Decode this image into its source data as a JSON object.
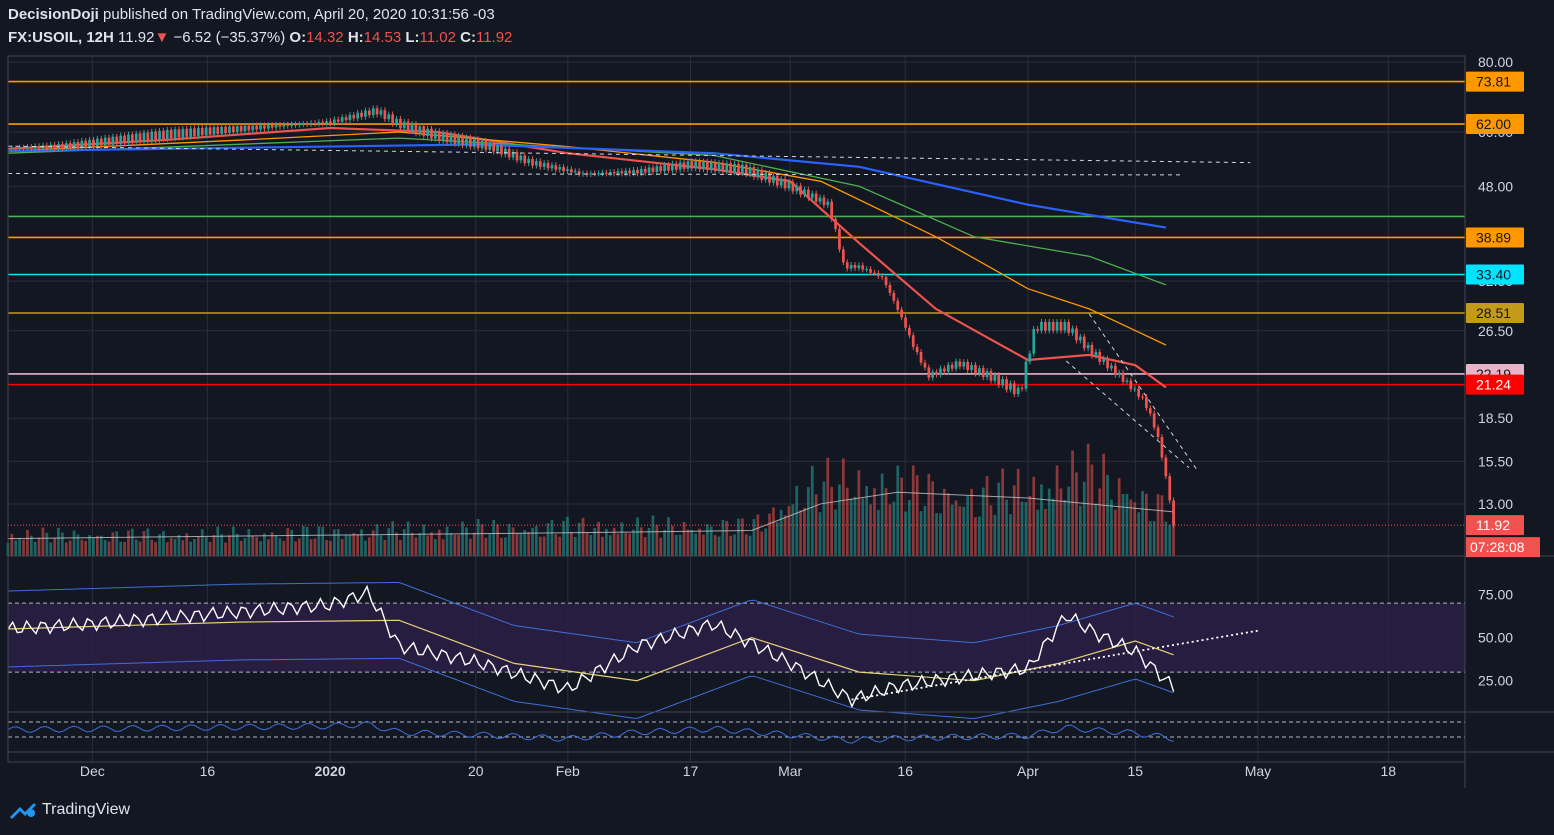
{
  "header": {
    "author": "DecisionDoji",
    "published": "published on TradingView.com, April 20, 2020 10:31:56 -03",
    "symbol": "FX:USOIL, 12H",
    "last": "11.92",
    "down_arrow": "▼",
    "change": "−6.52 (−35.37%)",
    "o_label": "O:",
    "o_value": "14.32",
    "h_label": "H:",
    "h_value": "14.53",
    "l_label": "L:",
    "l_value": "11.02",
    "c_label": "C:",
    "c_value": "11.92"
  },
  "footer": {
    "brand": "TradingView",
    "logo_icon": "tradingview-logo-icon"
  },
  "colors": {
    "background": "#131722",
    "grid": "#2a2e39",
    "up": "#26a69a",
    "down": "#ef5350",
    "orange": "#ff9800",
    "green_line": "#4caf50",
    "cyan": "#00e5ff",
    "gold": "#c49a1a",
    "pink": "#e8b4c8",
    "red_line": "#ff0000",
    "ma_blue": "#2962ff",
    "rsi_line": "#ffffff",
    "rsi_ma": "#e6d27a",
    "bb": "#3f6fd8",
    "band_fill": "#2a1f45"
  },
  "chart_data": [
    {
      "type": "candlestick",
      "title": "FX:USOIL, 12H",
      "y_scale": "log",
      "ylim": [
        10.5,
        82
      ],
      "y_ticks": [
        "80.00",
        "60.00",
        "48.00",
        "32.50",
        "26.50",
        "18.50",
        "15.50",
        "13.00"
      ],
      "x_ticks": [
        "Dec",
        "16",
        "2020",
        "20",
        "Feb",
        "17",
        "Mar",
        "16",
        "Apr",
        "15",
        "May",
        "18"
      ],
      "x_range": [
        "2019-11-20",
        "2020-05-28"
      ],
      "price_labels": [
        {
          "value": "73.81",
          "color": "#ff9800",
          "text_color": "#131722"
        },
        {
          "value": "62.00",
          "color": "#ff9800",
          "text_color": "#131722"
        },
        {
          "value": "38.89",
          "color": "#ff9800",
          "text_color": "#131722"
        },
        {
          "value": "33.40",
          "color": "#00e5ff",
          "text_color": "#131722"
        },
        {
          "value": "28.51",
          "color": "#c49a1a",
          "text_color": "#131722"
        },
        {
          "value": "22.19",
          "color": "#e8b4c8",
          "text_color": "#131722"
        },
        {
          "value": "21.24",
          "color": "#ff0000",
          "text_color": "#ffffff"
        },
        {
          "value": "11.92",
          "color": "#ef5350",
          "text_color": "#ffffff"
        }
      ],
      "countdown": "07:28:08",
      "horizontal_levels": [
        {
          "value": 73.81,
          "color": "#ff9800"
        },
        {
          "value": 62.0,
          "color": "#ff9800"
        },
        {
          "value": 42.4,
          "color": "#4caf50"
        },
        {
          "value": 38.89,
          "color": "#ff9800"
        },
        {
          "value": 33.4,
          "color": "#00e5ff"
        },
        {
          "value": 28.51,
          "color": "#c49a1a"
        },
        {
          "value": 22.19,
          "color": "#e8b4c8"
        },
        {
          "value": 21.24,
          "color": "#ff0000"
        }
      ],
      "dashed_trendlines": [
        {
          "from": [
            "2019-11-20",
            56.6
          ],
          "to": [
            "2020-04-30",
            52.9
          ]
        },
        {
          "from": [
            "2019-11-20",
            50.6
          ],
          "to": [
            "2020-04-21",
            50.3
          ]
        },
        {
          "from": [
            "2020-04-09",
            28.4
          ],
          "to": [
            "2020-04-23",
            15.0
          ]
        },
        {
          "from": [
            "2020-04-06",
            23.4
          ],
          "to": [
            "2020-04-22",
            15.1
          ]
        }
      ],
      "price_series": {
        "dates": [
          "2019-11-20",
          "2019-11-27",
          "2019-12-04",
          "2019-12-11",
          "2019-12-18",
          "2019-12-25",
          "2020-01-01",
          "2020-01-07",
          "2020-01-10",
          "2020-01-15",
          "2020-01-22",
          "2020-01-27",
          "2020-02-03",
          "2020-02-10",
          "2020-02-17",
          "2020-02-24",
          "2020-03-01",
          "2020-03-06",
          "2020-03-08",
          "2020-03-10",
          "2020-03-13",
          "2020-03-17",
          "2020-03-19",
          "2020-03-23",
          "2020-03-27",
          "2020-03-31",
          "2020-04-02",
          "2020-04-06",
          "2020-04-09",
          "2020-04-13",
          "2020-04-16",
          "2020-04-17",
          "2020-04-18",
          "2020-04-19",
          "2020-04-20"
        ],
        "close": [
          56.0,
          56.6,
          58.0,
          59.5,
          60.5,
          61.5,
          62.5,
          65.5,
          62.0,
          59.0,
          56.5,
          53.0,
          50.5,
          51.0,
          52.5,
          51.5,
          48.0,
          44.5,
          34.5,
          34.5,
          33.0,
          25.0,
          22.0,
          23.2,
          22.0,
          20.5,
          27.0,
          27.0,
          24.5,
          22.0,
          20.0,
          18.7,
          17.0,
          14.5,
          11.92
        ]
      },
      "moving_averages": [
        {
          "color": "#ef5350",
          "dates": [
            "2019-11-20",
            "2019-12-10",
            "2020-01-01",
            "2020-01-15",
            "2020-02-01",
            "2020-02-20",
            "2020-03-01",
            "2020-03-10",
            "2020-03-20",
            "2020-04-01",
            "2020-04-09",
            "2020-04-15",
            "2020-04-19"
          ],
          "values": [
            56.0,
            58.0,
            61.0,
            60.0,
            55.0,
            51.5,
            49.0,
            38.0,
            29.0,
            23.5,
            24.0,
            23.0,
            21.0
          ]
        },
        {
          "color": "#ff9800",
          "dates": [
            "2019-11-20",
            "2019-12-20",
            "2020-01-10",
            "2020-02-01",
            "2020-02-20",
            "2020-03-05",
            "2020-03-20",
            "2020-04-01",
            "2020-04-09",
            "2020-04-19"
          ],
          "values": [
            55.5,
            58.0,
            60.0,
            56.5,
            53.0,
            49.0,
            39.0,
            31.5,
            29.0,
            25.0
          ]
        },
        {
          "color": "#4caf50",
          "dates": [
            "2019-11-20",
            "2020-01-10",
            "2020-02-20",
            "2020-03-10",
            "2020-03-25",
            "2020-04-09",
            "2020-04-19"
          ],
          "values": [
            55.0,
            58.5,
            54.5,
            48.0,
            39.0,
            36.0,
            32.0
          ]
        },
        {
          "color": "#2962ff",
          "dates": [
            "2019-11-20",
            "2020-01-20",
            "2020-02-20",
            "2020-03-10",
            "2020-04-01",
            "2020-04-19"
          ],
          "values": [
            55.5,
            57.0,
            55.0,
            52.0,
            44.5,
            40.5
          ]
        }
      ]
    },
    {
      "type": "bar",
      "title": "Volume",
      "series": [
        {
          "type": "bar",
          "dates": [
            "2019-11-20",
            "2019-12-15",
            "2020-01-08",
            "2020-02-01",
            "2020-02-25",
            "2020-03-03",
            "2020-03-09",
            "2020-03-18",
            "2020-03-25",
            "2020-04-02",
            "2020-04-10",
            "2020-04-20"
          ],
          "values": [
            0.25,
            0.25,
            0.3,
            0.35,
            0.35,
            0.8,
            0.9,
            0.8,
            0.7,
            0.85,
            1.0,
            0.5
          ]
        },
        {
          "type": "line",
          "dates": [
            "2019-11-20",
            "2020-01-01",
            "2020-02-01",
            "2020-02-25",
            "2020-03-05",
            "2020-03-15",
            "2020-04-01",
            "2020-04-20"
          ],
          "values": [
            0.15,
            0.18,
            0.2,
            0.22,
            0.45,
            0.55,
            0.5,
            0.38
          ]
        }
      ]
    },
    {
      "type": "line",
      "title": "RSI",
      "ylim": [
        8,
        95
      ],
      "y_ticks": [
        "75.00",
        "50.00",
        "25.00"
      ],
      "band": [
        30,
        70
      ],
      "series": [
        {
          "name": "",
          "color": "#ffffff",
          "dates": [
            "2019-11-20",
            "2019-12-01",
            "2019-12-15",
            "2020-01-01",
            "2020-01-06",
            "2020-01-10",
            "2020-01-20",
            "2020-02-01",
            "2020-02-10",
            "2020-02-20",
            "2020-03-01",
            "2020-03-09",
            "2020-03-15",
            "2020-03-25",
            "2020-04-01",
            "2020-04-06",
            "2020-04-10",
            "2020-04-15",
            "2020-04-20"
          ],
          "values": [
            55,
            58,
            63,
            69,
            76,
            45,
            36,
            20,
            45,
            58,
            35,
            14,
            22,
            28,
            32,
            63,
            52,
            42,
            21
          ]
        },
        {
          "name": "",
          "color": "#e6d27a",
          "dates": [
            "2019-11-20",
            "2019-12-20",
            "2020-01-10",
            "2020-01-25",
            "2020-02-10",
            "2020-02-25",
            "2020-03-10",
            "2020-03-25",
            "2020-04-05",
            "2020-04-15",
            "2020-04-20"
          ],
          "values": [
            55,
            59,
            60,
            35,
            25,
            50,
            30,
            25,
            35,
            48,
            40
          ]
        }
      ],
      "trendline": {
        "from": [
          "2020-03-09",
          14.0
        ],
        "to": [
          "2020-05-01",
          54.0
        ]
      }
    }
  ]
}
